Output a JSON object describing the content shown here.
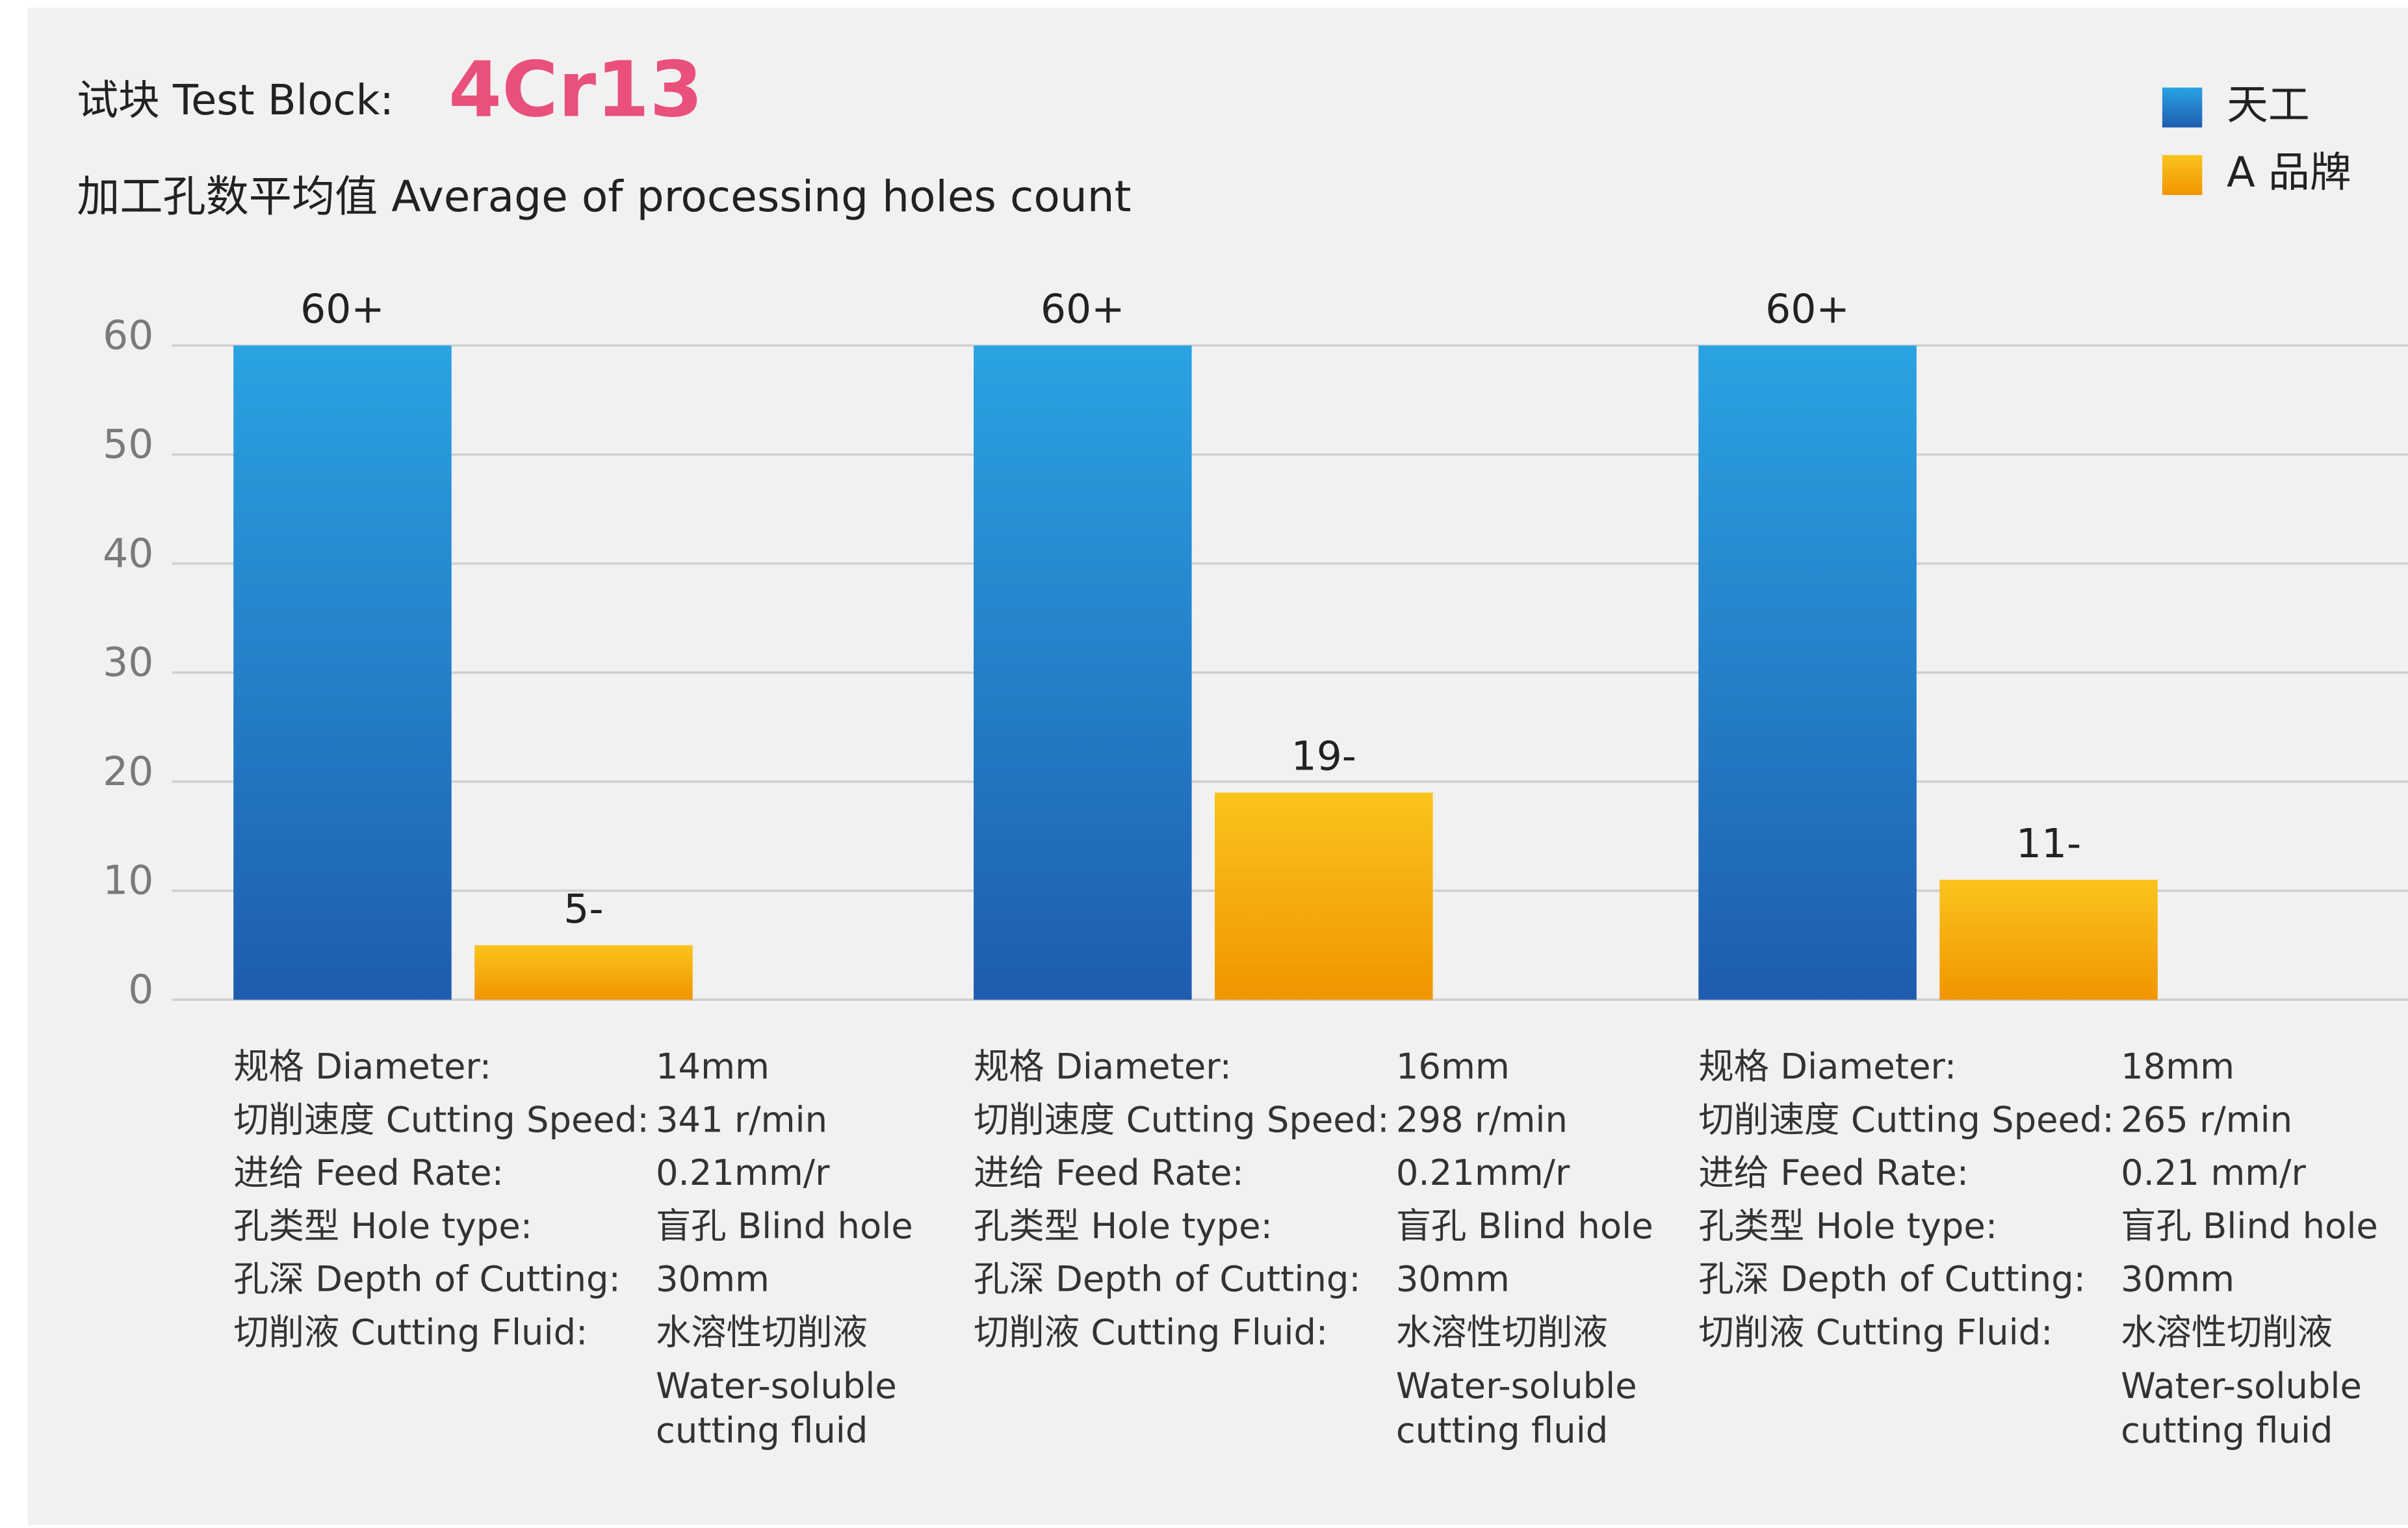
{
  "chart_data": {
    "type": "bar",
    "title": "试块 Test Block:",
    "title_highlight": "4Cr13",
    "subtitle": "加工孔数平均值 Average of processing holes count",
    "categories": [
      null,
      null,
      null
    ],
    "series": [
      {
        "name": "天工",
        "color": "#2585d0",
        "values": [
          60,
          60,
          60
        ],
        "value_labels": [
          "60+",
          "60+",
          "60+"
        ]
      },
      {
        "name": "A 品牌",
        "color": "#f5aa0a",
        "values": [
          5,
          19,
          11
        ],
        "value_labels": [
          "5-",
          "19-",
          "11-"
        ]
      }
    ],
    "ylim": [
      0,
      60
    ],
    "yticks": [
      0,
      10,
      20,
      30,
      40,
      50,
      60
    ],
    "grid": true,
    "legend": "top-right"
  },
  "specs": [
    {
      "rows": [
        {
          "label": "规格 Diameter:",
          "value": [
            "14mm"
          ]
        },
        {
          "label": "切削速度 Cutting Speed:",
          "value": [
            "341 r/min"
          ]
        },
        {
          "label": "进给 Feed Rate:",
          "value": [
            "0.21mm/r"
          ]
        },
        {
          "label": "孔类型 Hole type:",
          "value": [
            "盲孔 Blind hole"
          ]
        },
        {
          "label": "孔深 Depth of Cutting:",
          "value": [
            "30mm"
          ]
        },
        {
          "label": "切削液 Cutting Fluid:",
          "value": [
            "水溶性切削液",
            "Water-soluble",
            "cutting fluid"
          ]
        }
      ]
    },
    {
      "rows": [
        {
          "label": "规格 Diameter:",
          "value": [
            "16mm"
          ]
        },
        {
          "label": "切削速度 Cutting Speed:",
          "value": [
            "298 r/min"
          ]
        },
        {
          "label": "进给 Feed Rate:",
          "value": [
            "0.21mm/r"
          ]
        },
        {
          "label": "孔类型 Hole type:",
          "value": [
            "盲孔 Blind hole"
          ]
        },
        {
          "label": "孔深 Depth of Cutting:",
          "value": [
            "30mm"
          ]
        },
        {
          "label": "切削液 Cutting Fluid:",
          "value": [
            "水溶性切削液",
            "Water-soluble",
            "cutting fluid"
          ]
        }
      ]
    },
    {
      "rows": [
        {
          "label": "规格 Diameter:",
          "value": [
            "18mm"
          ]
        },
        {
          "label": "切削速度 Cutting Speed:",
          "value": [
            "265 r/min"
          ]
        },
        {
          "label": "进给 Feed Rate:",
          "value": [
            "0.21 mm/r"
          ]
        },
        {
          "label": "孔类型 Hole type:",
          "value": [
            "盲孔 Blind hole"
          ]
        },
        {
          "label": "孔深 Depth of Cutting:",
          "value": [
            "30mm"
          ]
        },
        {
          "label": "切削液 Cutting Fluid:",
          "value": [
            "水溶性切削液",
            "Water-soluble",
            "cutting fluid"
          ]
        }
      ]
    }
  ]
}
